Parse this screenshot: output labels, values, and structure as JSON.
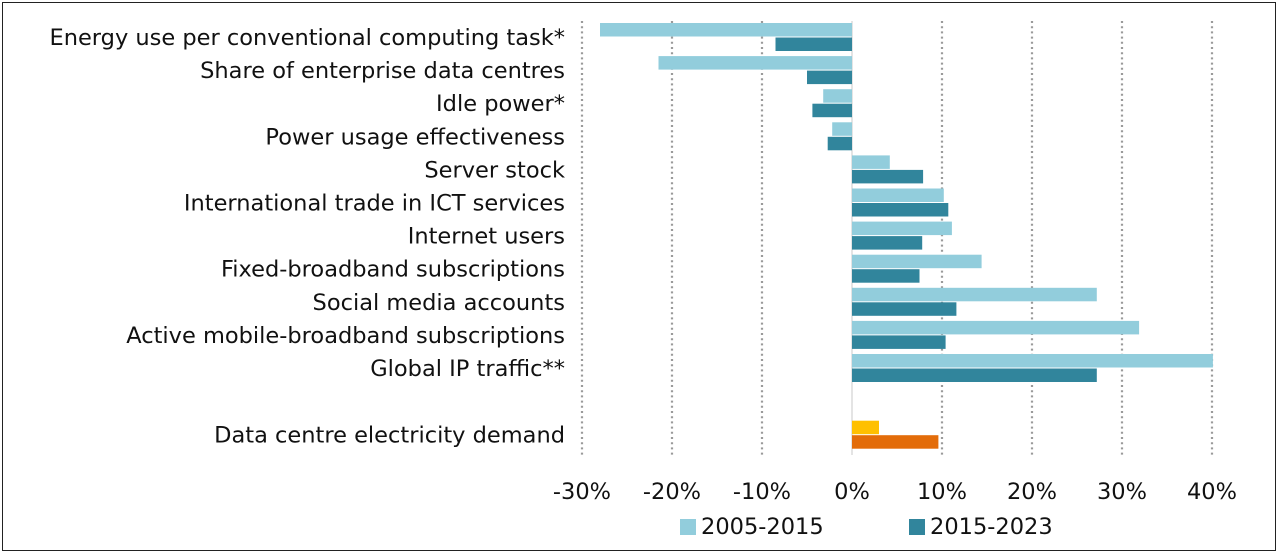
{
  "chart_data": {
    "type": "bar",
    "orientation": "horizontal",
    "title": "",
    "xlabel": "",
    "ylabel": "",
    "x_format": "percent",
    "xlim": [
      -30,
      40
    ],
    "xticks": [
      -30,
      -20,
      -10,
      0,
      10,
      20,
      30,
      40
    ],
    "tick_labels": [
      "-30%",
      "-20%",
      "-10%",
      "0%",
      "10%",
      "20%",
      "30%",
      "40%"
    ],
    "grid": "vertical dotted",
    "legend_position": "bottom",
    "categories": [
      "Energy use per conventional computing task*",
      "Share of enterprise data centres",
      "Idle power*",
      "Power usage effectiveness",
      "Server stock",
      "International trade in ICT services",
      "Internet users",
      "Fixed-broadband subscriptions",
      "Social media accounts",
      "Active mobile-broadband subscriptions",
      "Global IP traffic**",
      "Data centre electricity demand"
    ],
    "series": [
      {
        "name": "2005-2015",
        "color": "#92cddc",
        "highlight_color": "#ffc000",
        "values": [
          -28,
          -21.5,
          -3.2,
          -2.2,
          4.2,
          10.2,
          11.1,
          14.4,
          27.2,
          31.9,
          40.1,
          3.0
        ]
      },
      {
        "name": "2015-2023",
        "color": "#31859c",
        "highlight_color": "#e36c09",
        "values": [
          -8.5,
          -5.0,
          -4.4,
          -2.7,
          7.9,
          10.7,
          7.8,
          7.5,
          11.6,
          10.4,
          27.2,
          9.6
        ]
      }
    ],
    "highlighted_category": "Data centre electricity demand"
  }
}
